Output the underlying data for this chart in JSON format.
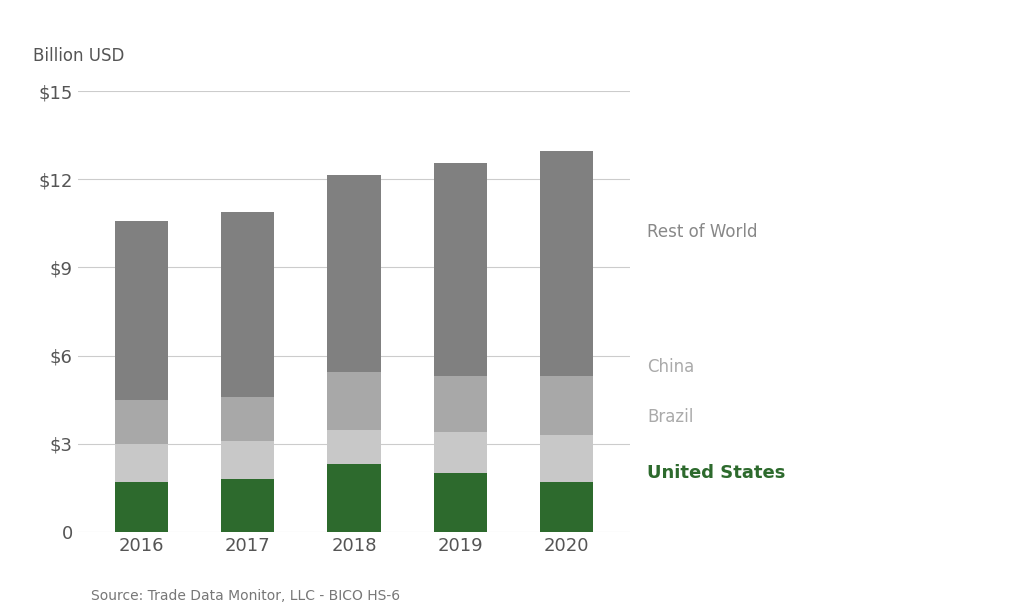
{
  "years": [
    "2016",
    "2017",
    "2018",
    "2019",
    "2020"
  ],
  "united_states": [
    1.7,
    1.8,
    2.3,
    2.0,
    1.7
  ],
  "brazil": [
    1.3,
    1.3,
    1.15,
    1.4,
    1.6
  ],
  "china": [
    1.5,
    1.5,
    2.0,
    1.9,
    2.0
  ],
  "rest_of_world": [
    6.1,
    6.3,
    6.7,
    7.25,
    7.65
  ],
  "colors": {
    "united_states": "#2d6a2d",
    "brazil": "#c8c8c8",
    "china": "#a8a8a8",
    "rest_of_world": "#808080"
  },
  "legend_labels": {
    "rest_of_world": "Rest of World",
    "china": "China",
    "brazil": "Brazil",
    "united_states": "United States"
  },
  "ylabel": "Billion USD",
  "ylim": [
    0,
    15
  ],
  "yticks": [
    0,
    3,
    6,
    9,
    12,
    15
  ],
  "ytick_labels": [
    "0",
    "$3",
    "$6",
    "$9",
    "$12",
    "$15"
  ],
  "source": "Source: Trade Data Monitor, LLC - BICO HS-6",
  "background_color": "#ffffff",
  "bar_width": 0.5
}
